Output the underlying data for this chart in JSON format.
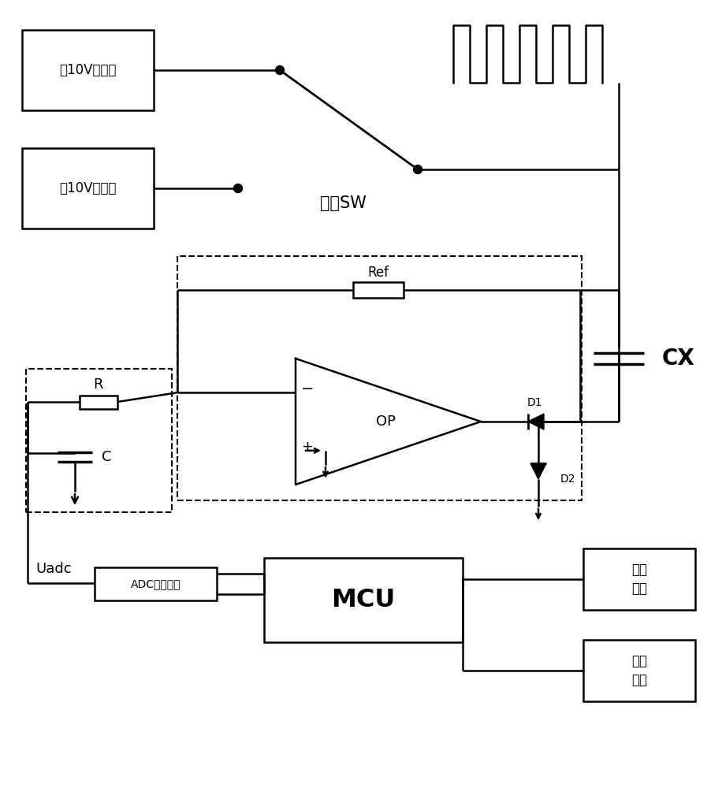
{
  "bg_color": "#ffffff",
  "line_color": "#000000",
  "text_color": "#000000",
  "fig_width": 9.16,
  "fig_height": 10.0,
  "dpi": 100,
  "labels": {
    "pos_source": "欵10V恒压源",
    "neg_source": "贏10V恒压源",
    "switch": "开关SW",
    "ref": "Ref",
    "op": "OP",
    "cx": "CX",
    "r_label": "R",
    "c_label": "C",
    "d1": "D1",
    "d2": "D2",
    "uadc": "Uadc",
    "adc": "ADC采集模块",
    "mcu": "MCU",
    "display": "显示\n模块",
    "comm": "通信\n模块"
  }
}
